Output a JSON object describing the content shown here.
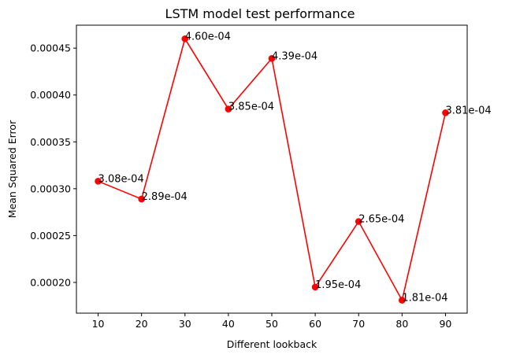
{
  "chart_data": {
    "type": "line",
    "title": "LSTM model test performance",
    "xlabel": "Different lookback",
    "ylabel": "Mean Squared Error",
    "x": [
      10,
      20,
      30,
      40,
      50,
      60,
      70,
      80,
      90
    ],
    "xticks": [
      "10",
      "20",
      "30",
      "40",
      "50",
      "60",
      "70",
      "80",
      "90"
    ],
    "yticks": [
      "0.00020",
      "0.00025",
      "0.00030",
      "0.00035",
      "0.00040",
      "0.00045"
    ],
    "ytick_values": [
      0.0002,
      0.00025,
      0.0003,
      0.00035,
      0.0004,
      0.00045
    ],
    "xlim": [
      5,
      95
    ],
    "ylim": [
      0.0001672,
      0.0004745
    ],
    "series": [
      {
        "values": [
          0.000308,
          0.000289,
          0.00046,
          0.000385,
          0.000439,
          0.000195,
          0.000265,
          0.000181,
          0.000381
        ],
        "labels": [
          "3.08e-04",
          "2.89e-04",
          "4.60e-04",
          "3.85e-04",
          "4.39e-04",
          "1.95e-04",
          "2.65e-04",
          "1.81e-04",
          "3.81e-04"
        ],
        "color": "#ff0000",
        "marker": "circle"
      }
    ],
    "grid": false,
    "legend": "none"
  }
}
